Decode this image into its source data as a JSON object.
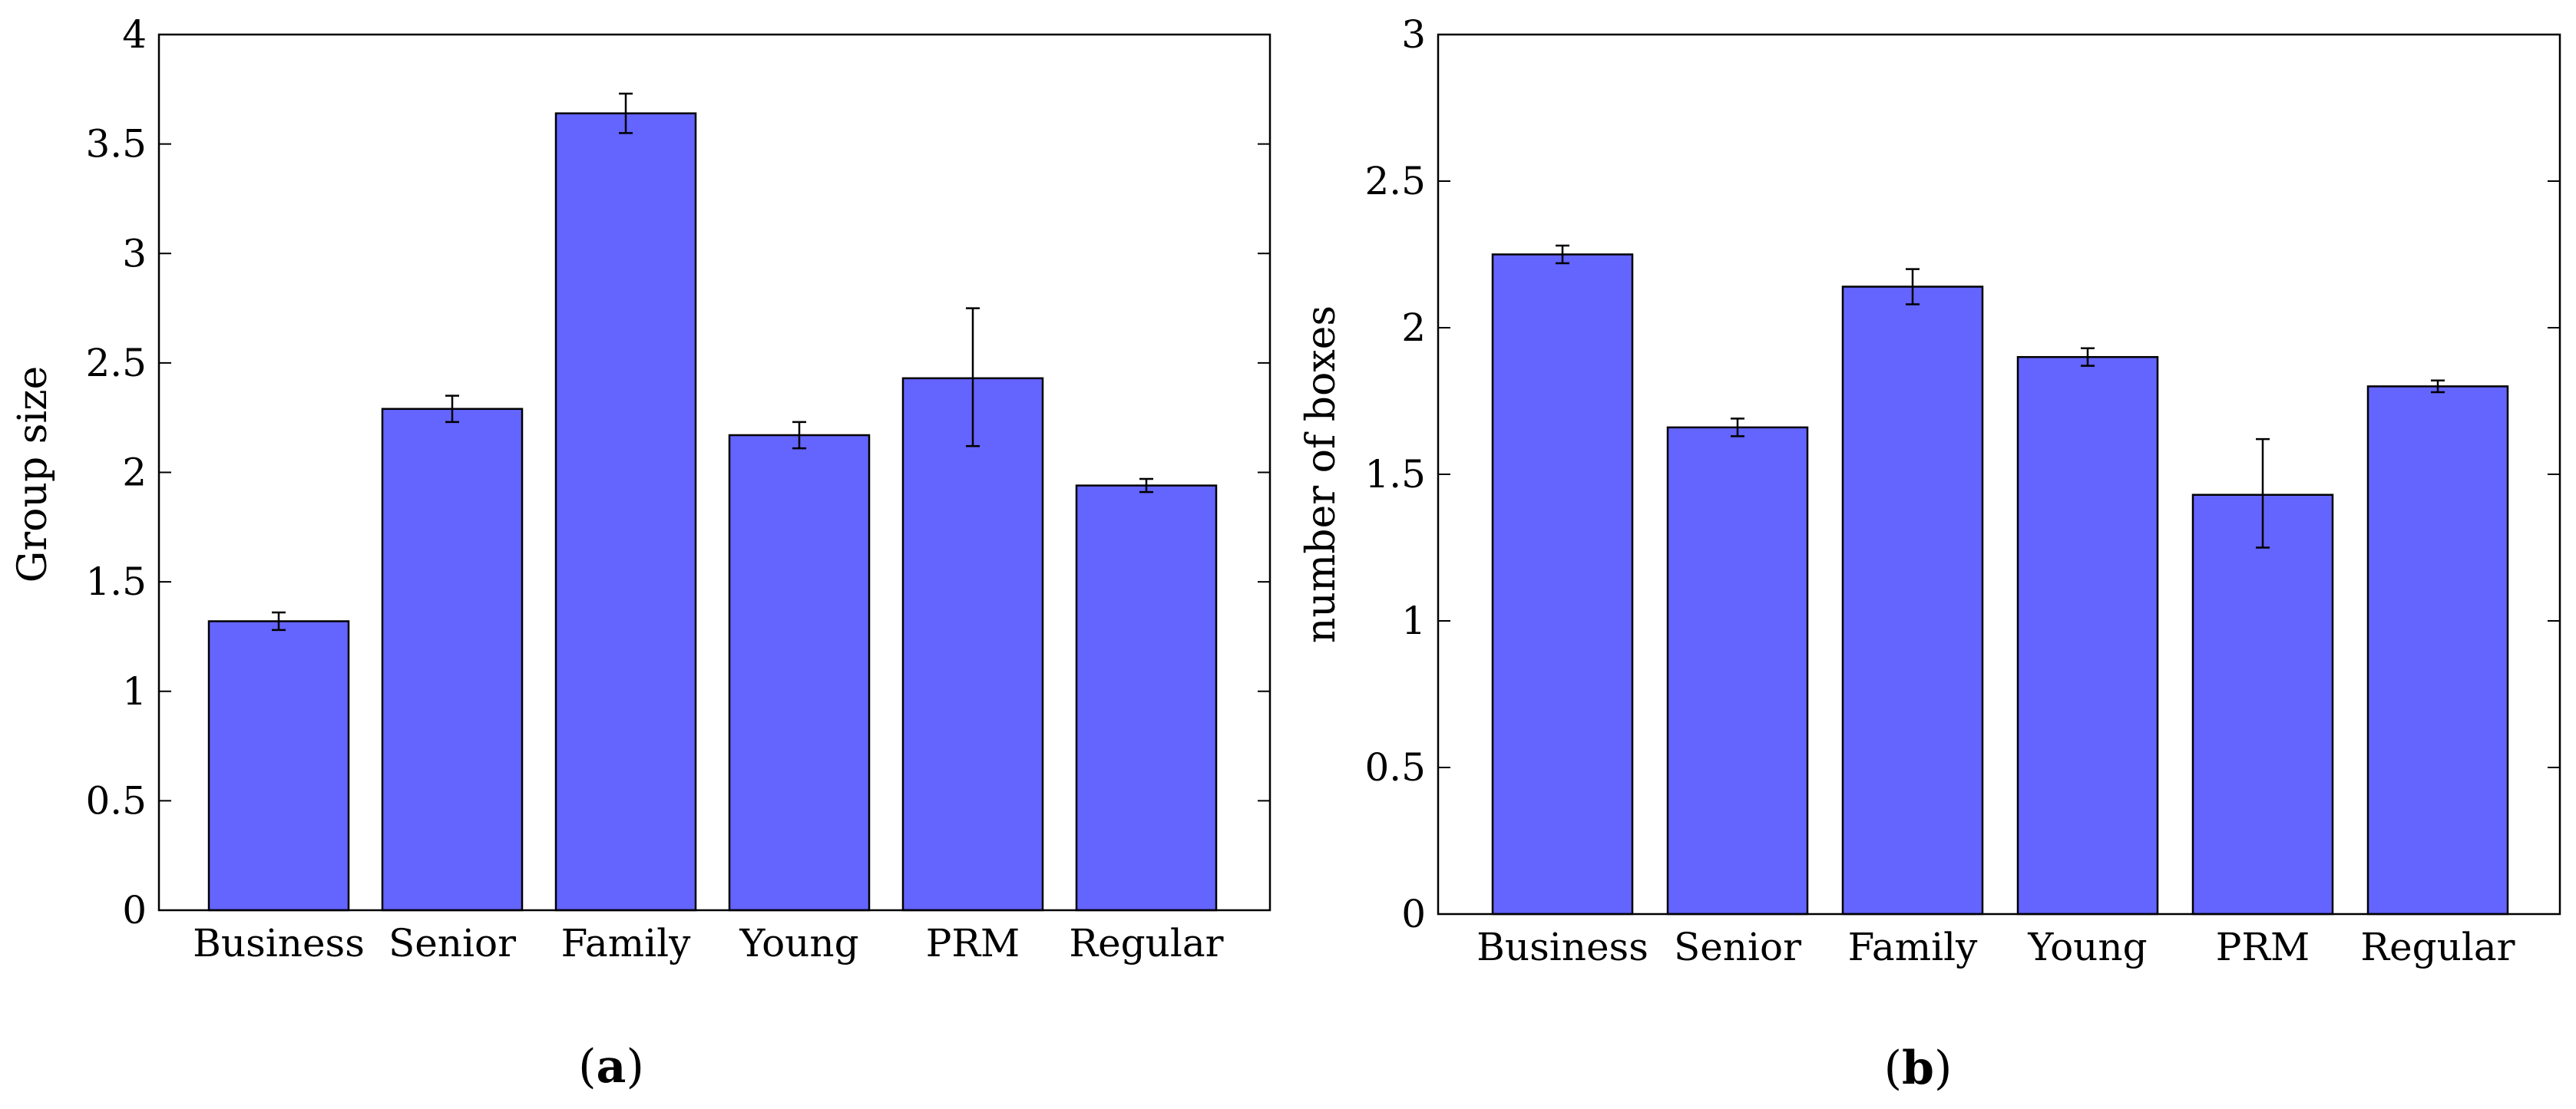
{
  "chart_data": [
    {
      "type": "bar",
      "panel": "a",
      "caption_letter": "a",
      "ylabel": "Group size",
      "xlabel": "",
      "ylim": [
        0,
        4
      ],
      "yticks": [
        0,
        0.5,
        1,
        1.5,
        2,
        2.5,
        3,
        3.5,
        4
      ],
      "ytick_labels": [
        "0",
        "0.5",
        "1",
        "1.5",
        "2",
        "2.5",
        "3",
        "3.5",
        "4"
      ],
      "bar_color": "#6464ff",
      "categories": [
        "Business",
        "Senior",
        "Family",
        "Young",
        "PRM",
        "Regular"
      ],
      "values": [
        1.32,
        2.29,
        3.64,
        2.17,
        2.43,
        1.94
      ],
      "error_low": [
        1.28,
        2.23,
        3.55,
        2.11,
        2.12,
        1.91
      ],
      "error_high": [
        1.36,
        2.35,
        3.73,
        2.23,
        2.75,
        1.97
      ]
    },
    {
      "type": "bar",
      "panel": "b",
      "caption_letter": "b",
      "ylabel": "number of boxes",
      "xlabel": "",
      "ylim": [
        0,
        3
      ],
      "yticks": [
        0,
        0.5,
        1,
        1.5,
        2,
        2.5,
        3
      ],
      "ytick_labels": [
        "0",
        "0.5",
        "1",
        "1.5",
        "2",
        "2.5",
        "3"
      ],
      "bar_color": "#6464ff",
      "categories": [
        "Business",
        "Senior",
        "Family",
        "Young",
        "PRM",
        "Regular"
      ],
      "values": [
        2.25,
        1.66,
        2.14,
        1.9,
        1.43,
        1.8
      ],
      "error_low": [
        2.22,
        1.63,
        2.08,
        1.87,
        1.25,
        1.78
      ],
      "error_high": [
        2.28,
        1.69,
        2.2,
        1.93,
        1.62,
        1.82
      ]
    }
  ]
}
